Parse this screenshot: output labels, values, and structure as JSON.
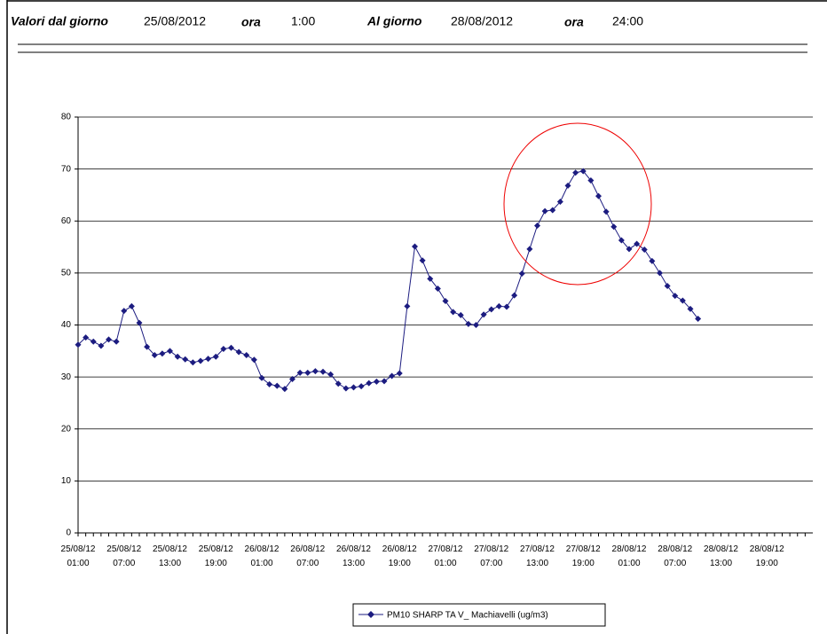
{
  "header": {
    "from_label": "Valori dal giorno",
    "from_date": "25/08/2012",
    "from_time_label": "ora",
    "from_time": "1:00",
    "to_label": "Al giorno",
    "to_date": "28/08/2012",
    "to_time_label": "ora",
    "to_time": "24:00"
  },
  "chart_data": {
    "type": "line",
    "categories": [
      "25/08/12\n01:00",
      null,
      null,
      null,
      null,
      null,
      "25/08/12\n07:00",
      null,
      null,
      null,
      null,
      null,
      "25/08/12\n13:00",
      null,
      null,
      null,
      null,
      null,
      "25/08/12\n19:00",
      null,
      null,
      null,
      null,
      null,
      "26/08/12\n01:00",
      null,
      null,
      null,
      null,
      null,
      "26/08/12\n07:00",
      null,
      null,
      null,
      null,
      null,
      "26/08/12\n13:00",
      null,
      null,
      null,
      null,
      null,
      "26/08/12\n19:00",
      null,
      null,
      null,
      null,
      null,
      "27/08/12\n01:00",
      null,
      null,
      null,
      null,
      null,
      "27/08/12\n07:00",
      null,
      null,
      null,
      null,
      null,
      "27/08/12\n13:00",
      null,
      null,
      null,
      null,
      null,
      "27/08/12\n19:00",
      null,
      null,
      null,
      null,
      null,
      "28/08/12\n01:00",
      null,
      null,
      null,
      null,
      null,
      "28/08/12\n07:00",
      null,
      null,
      null,
      null,
      null,
      "28/08/12\n13:00",
      null,
      null,
      null,
      null,
      null,
      "28/08/12\n19:00",
      null,
      null,
      null,
      null,
      null
    ],
    "series": [
      {
        "name": "PM10 SHARP TA V_ Machiavelli (ug/m3)",
        "color": "#1c1c80",
        "values": [
          36.2,
          37.6,
          36.8,
          36.0,
          37.2,
          36.8,
          42.7,
          43.6,
          40.4,
          35.8,
          34.2,
          34.5,
          35.0,
          33.9,
          33.4,
          32.8,
          33.1,
          33.5,
          33.9,
          35.4,
          35.6,
          34.8,
          34.2,
          33.3,
          29.8,
          28.6,
          28.3,
          27.7,
          29.6,
          30.8,
          30.8,
          31.1,
          31.0,
          30.5,
          28.7,
          27.8,
          28.0,
          28.2,
          28.8,
          29.1,
          29.2,
          30.2,
          30.7,
          43.6,
          55.1,
          52.4,
          48.9,
          47.0,
          44.6,
          42.5,
          41.9,
          40.2,
          40.0,
          42.0,
          43.0,
          43.6,
          43.5,
          45.7,
          49.9,
          54.6,
          59.1,
          61.9,
          62.1,
          63.7,
          66.8,
          69.3,
          69.6,
          67.8,
          64.8,
          61.8,
          58.9,
          56.3,
          54.6,
          55.6,
          54.5,
          52.3,
          50.0,
          47.5,
          45.6,
          44.7,
          43.1,
          41.2,
          null,
          null,
          null,
          null,
          null,
          null,
          null,
          null,
          null,
          null,
          null,
          null,
          null,
          null
        ]
      }
    ],
    "ylim": [
      0,
      80
    ],
    "yticks": [
      0,
      10,
      20,
      30,
      40,
      50,
      60,
      70,
      80
    ],
    "grid": true
  }
}
